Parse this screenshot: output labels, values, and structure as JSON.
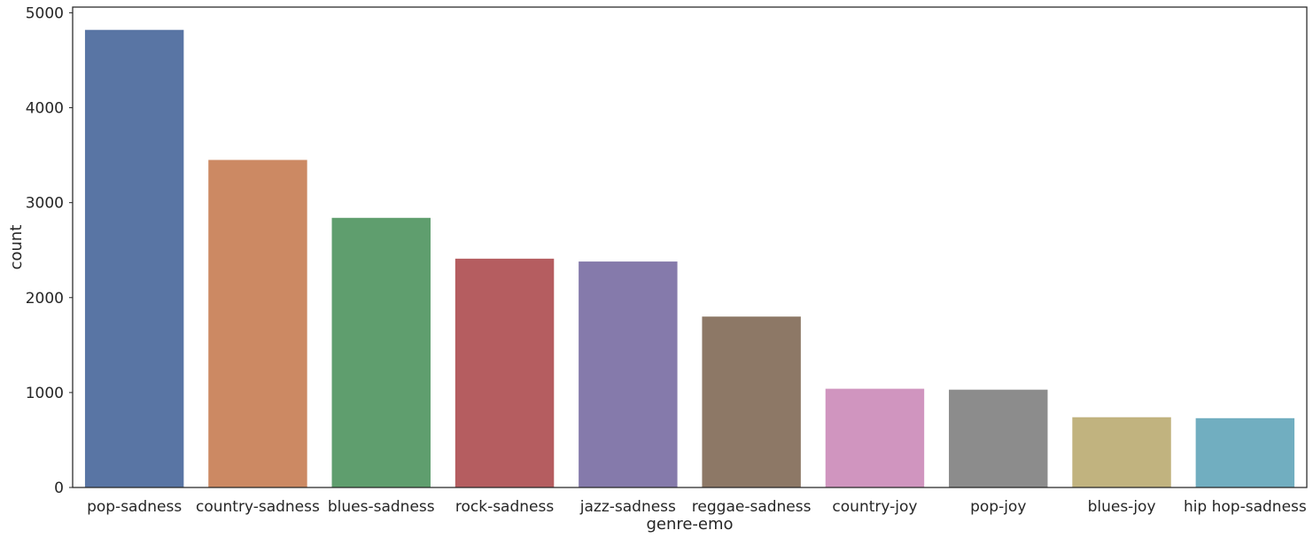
{
  "chart_data": {
    "type": "bar",
    "title": "",
    "xlabel": "genre-emo",
    "ylabel": "count",
    "categories": [
      "pop-sadness",
      "country-sadness",
      "blues-sadness",
      "rock-sadness",
      "jazz-sadness",
      "reggae-sadness",
      "country-joy",
      "pop-joy",
      "blues-joy",
      "hip hop-sadness"
    ],
    "values": [
      4820,
      3450,
      2840,
      2410,
      2380,
      1800,
      1040,
      1030,
      740,
      730
    ],
    "colors": [
      "#5975a4",
      "#cc8963",
      "#5f9e6e",
      "#b55d60",
      "#857aab",
      "#8d7866",
      "#d095bf",
      "#8c8c8c",
      "#c1b37f",
      "#71aec0"
    ],
    "yticks": [
      0,
      1000,
      2000,
      3000,
      4000,
      5000
    ],
    "ylim": [
      0,
      5060
    ],
    "grid": false,
    "legend": "none"
  }
}
